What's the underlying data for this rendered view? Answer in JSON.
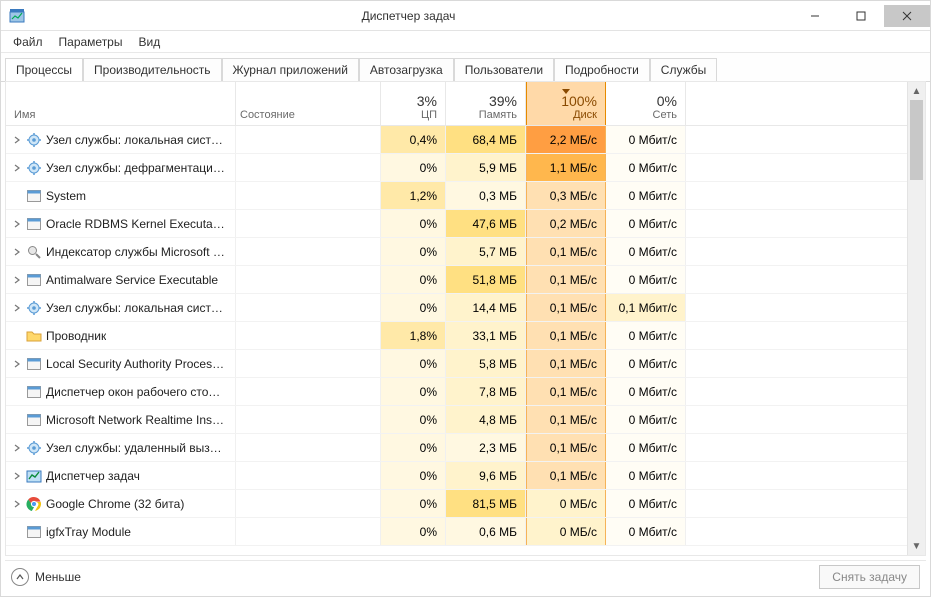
{
  "window": {
    "title": "Диспетчер задач"
  },
  "menu": {
    "file": "Файл",
    "options": "Параметры",
    "view": "Вид"
  },
  "tabs": {
    "processes": "Процессы",
    "performance": "Производительность",
    "apphistory": "Журнал приложений",
    "startup": "Автозагрузка",
    "users": "Пользователи",
    "details": "Подробности",
    "services": "Службы"
  },
  "header": {
    "name": "Имя",
    "state": "Состояние",
    "cpu_pct": "3%",
    "cpu_label": "ЦП",
    "mem_pct": "39%",
    "mem_label": "Память",
    "disk_pct": "100%",
    "disk_label": "Диск",
    "net_pct": "0%",
    "net_label": "Сеть"
  },
  "heat": {
    "cpu_base": "#fff8e1",
    "cpu_med": "#ffe9a8",
    "mem_base": "#fff3cc",
    "disk_col_header_bg": "#ffd9a8",
    "disk_col_border": "#e68a00",
    "disk_0": "#fff3cc",
    "disk_top": "#ff9e42"
  },
  "rows": [
    {
      "expand": true,
      "icon": "gear",
      "name": "Узел службы: локальная систе…",
      "cpu": "0,4%",
      "cpu_cls": "heat-cpu-med",
      "mem": "68,4 МБ",
      "mem_cls": "heat-mem-high",
      "disk": "2,2 МБ/с",
      "disk_cls": "heat-disk-top",
      "net": "0 Мбит/с",
      "net_cls": "heat-net-0"
    },
    {
      "expand": true,
      "icon": "gear",
      "name": "Узел службы: дефрагментаци…",
      "cpu": "0%",
      "cpu_cls": "heat-cpu-base",
      "mem": "5,9 МБ",
      "mem_cls": "heat-mem-base",
      "disk": "1,1 МБ/с",
      "disk_cls": "heat-disk-3",
      "net": "0 Мбит/с",
      "net_cls": "heat-net-0"
    },
    {
      "expand": false,
      "icon": "window",
      "name": "System",
      "cpu": "1,2%",
      "cpu_cls": "heat-cpu-med",
      "mem": "0,3 МБ",
      "mem_cls": "heat-mem-low",
      "disk": "0,3 МБ/с",
      "disk_cls": "heat-disk-1",
      "net": "0 Мбит/с",
      "net_cls": "heat-net-0"
    },
    {
      "expand": true,
      "icon": "window",
      "name": "Oracle RDBMS Kernel Executable",
      "cpu": "0%",
      "cpu_cls": "heat-cpu-base",
      "mem": "47,6 МБ",
      "mem_cls": "heat-mem-high",
      "disk": "0,2 МБ/с",
      "disk_cls": "heat-disk-1",
      "net": "0 Мбит/с",
      "net_cls": "heat-net-0"
    },
    {
      "expand": true,
      "icon": "search",
      "name": "Индексатор службы Microsoft …",
      "cpu": "0%",
      "cpu_cls": "heat-cpu-base",
      "mem": "5,7 МБ",
      "mem_cls": "heat-mem-base",
      "disk": "0,1 МБ/с",
      "disk_cls": "heat-disk-1",
      "net": "0 Мбит/с",
      "net_cls": "heat-net-0"
    },
    {
      "expand": true,
      "icon": "window",
      "name": "Antimalware Service Executable",
      "cpu": "0%",
      "cpu_cls": "heat-cpu-base",
      "mem": "51,8 МБ",
      "mem_cls": "heat-mem-high",
      "disk": "0,1 МБ/с",
      "disk_cls": "heat-disk-1",
      "net": "0 Мбит/с",
      "net_cls": "heat-net-0"
    },
    {
      "expand": true,
      "icon": "gear",
      "name": "Узел службы: локальная систе…",
      "cpu": "0%",
      "cpu_cls": "heat-cpu-base",
      "mem": "14,4 МБ",
      "mem_cls": "heat-mem-base",
      "disk": "0,1 МБ/с",
      "disk_cls": "heat-disk-1",
      "net": "0,1 Мбит/с",
      "net_cls": "heat-net-1"
    },
    {
      "expand": false,
      "icon": "folder",
      "name": "Проводник",
      "cpu": "1,8%",
      "cpu_cls": "heat-cpu-med",
      "mem": "33,1 МБ",
      "mem_cls": "heat-mem-base",
      "disk": "0,1 МБ/с",
      "disk_cls": "heat-disk-1",
      "net": "0 Мбит/с",
      "net_cls": "heat-net-0"
    },
    {
      "expand": true,
      "icon": "window",
      "name": "Local Security Authority Process…",
      "cpu": "0%",
      "cpu_cls": "heat-cpu-base",
      "mem": "5,8 МБ",
      "mem_cls": "heat-mem-base",
      "disk": "0,1 МБ/с",
      "disk_cls": "heat-disk-1",
      "net": "0 Мбит/с",
      "net_cls": "heat-net-0"
    },
    {
      "expand": false,
      "icon": "window",
      "name": "Диспетчер окон рабочего стола…",
      "cpu": "0%",
      "cpu_cls": "heat-cpu-base",
      "mem": "7,8 МБ",
      "mem_cls": "heat-mem-base",
      "disk": "0,1 МБ/с",
      "disk_cls": "heat-disk-1",
      "net": "0 Мбит/с",
      "net_cls": "heat-net-0"
    },
    {
      "expand": false,
      "icon": "window",
      "name": "Microsoft Network Realtime Ins…",
      "cpu": "0%",
      "cpu_cls": "heat-cpu-base",
      "mem": "4,8 МБ",
      "mem_cls": "heat-mem-base",
      "disk": "0,1 МБ/с",
      "disk_cls": "heat-disk-1",
      "net": "0 Мбит/с",
      "net_cls": "heat-net-0"
    },
    {
      "expand": true,
      "icon": "gear",
      "name": "Узел службы: удаленный вызо…",
      "cpu": "0%",
      "cpu_cls": "heat-cpu-base",
      "mem": "2,3 МБ",
      "mem_cls": "heat-mem-low",
      "disk": "0,1 МБ/с",
      "disk_cls": "heat-disk-1",
      "net": "0 Мбит/с",
      "net_cls": "heat-net-0"
    },
    {
      "expand": true,
      "icon": "taskmgr",
      "name": "Диспетчер задач",
      "cpu": "0%",
      "cpu_cls": "heat-cpu-base",
      "mem": "9,6 МБ",
      "mem_cls": "heat-mem-base",
      "disk": "0,1 МБ/с",
      "disk_cls": "heat-disk-1",
      "net": "0 Мбит/с",
      "net_cls": "heat-net-0"
    },
    {
      "expand": true,
      "icon": "chrome",
      "name": "Google Chrome (32 бита)",
      "cpu": "0%",
      "cpu_cls": "heat-cpu-base",
      "mem": "81,5 МБ",
      "mem_cls": "heat-mem-high",
      "disk": "0 МБ/с",
      "disk_cls": "heat-disk-0",
      "net": "0 Мбит/с",
      "net_cls": "heat-net-0"
    },
    {
      "expand": false,
      "icon": "window",
      "name": "igfxTray Module",
      "cpu": "0%",
      "cpu_cls": "heat-cpu-base",
      "mem": "0,6 МБ",
      "mem_cls": "heat-mem-low",
      "disk": "0 МБ/с",
      "disk_cls": "heat-disk-0",
      "net": "0 Мбит/с",
      "net_cls": "heat-net-0"
    }
  ],
  "footer": {
    "fewer": "Меньше",
    "end_task": "Снять задачу"
  }
}
